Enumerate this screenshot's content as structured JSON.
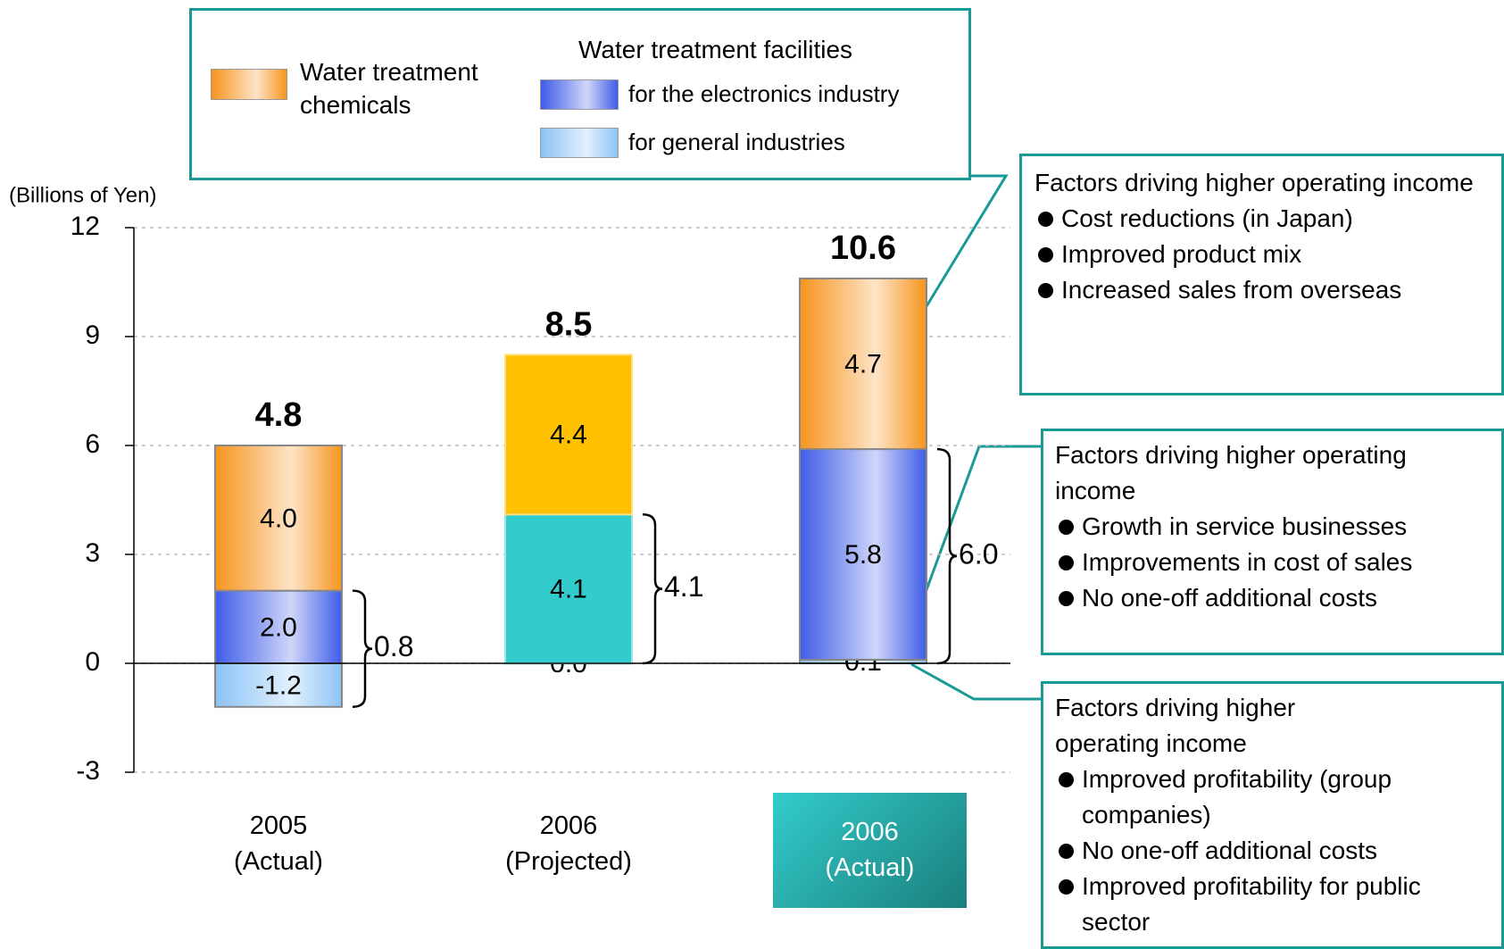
{
  "chart_data": {
    "type": "stacked_bar",
    "y_label": "(Billions of Yen)",
    "categories": [
      "2005 (Actual)",
      "2006 (Projected)",
      "2006 (Actual)"
    ],
    "highlight_index": 2,
    "gradient": [
      true,
      false,
      true
    ],
    "legend_group_title": "Water treatment facilities",
    "series": [
      {
        "name": "for general industries",
        "color": "#8cc3f5",
        "colors": [
          "#8cc3f5",
          "#33cccc",
          "#8cc3f5"
        ],
        "values": [
          -1.2,
          0.0,
          0.1
        ],
        "value_labels": [
          "-1.2",
          "0.0",
          "0.1"
        ]
      },
      {
        "name": "for the electronics industry",
        "color": "#3f5ce8",
        "colors": [
          "#3f5ce8",
          "#33cccc",
          "#3f5ce8"
        ],
        "values": [
          2.0,
          4.1,
          5.8
        ],
        "value_labels": [
          "2.0",
          "4.1",
          "5.8"
        ]
      },
      {
        "name": "Water treatment chemicals",
        "color": "#f7941d",
        "colors": [
          "#f7941d",
          "#ffc000",
          "#f7941d"
        ],
        "values": [
          4.0,
          4.4,
          4.7
        ],
        "value_labels": [
          "4.0",
          "4.4",
          "4.7"
        ]
      }
    ],
    "totals": [
      4.8,
      8.5,
      10.6
    ],
    "braces": {
      "values": [
        0.8,
        4.1,
        6.0
      ],
      "value_labels": [
        "0.8",
        "4.1",
        "6.0"
      ]
    },
    "ylim": [
      -3,
      12
    ],
    "yticks": [
      -3,
      0,
      3,
      6,
      9,
      12
    ],
    "grid": true,
    "annotations": [
      {
        "title": "Factors driving higher operating income",
        "items": [
          "Cost reductions (in Japan)",
          "Improved product mix",
          "Increased sales from overseas"
        ]
      },
      {
        "title": "Factors driving higher operating income",
        "items": [
          "Growth in service businesses",
          "Improvements in cost of sales",
          "No one-off additional costs"
        ]
      },
      {
        "title": "Factors driving higher operating income",
        "items": [
          "Improved profitability (group companies)",
          "No one-off additional costs",
          "Improved profitability for public sector"
        ]
      }
    ]
  }
}
